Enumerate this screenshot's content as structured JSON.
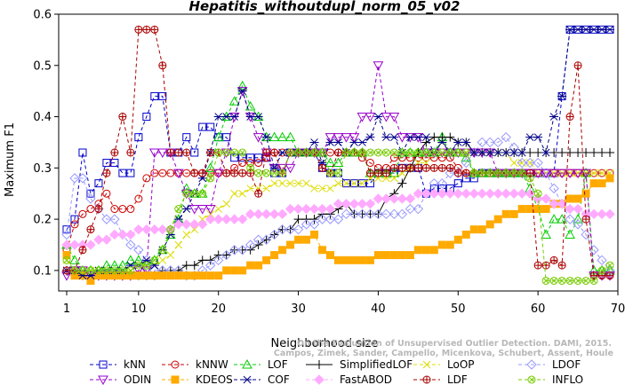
{
  "chart_data": {
    "type": "line",
    "title": "Hepatitis_withoutdupl_norm_05_v02",
    "xlabel": "Neighborhood size",
    "ylabel": "Maximum F1",
    "xlim": [
      0,
      70
    ],
    "ylim": [
      0.06,
      0.6
    ],
    "x_ticks": [
      1,
      10,
      20,
      30,
      40,
      50,
      60,
      70
    ],
    "y_ticks": [
      0.1,
      0.2,
      0.3,
      0.4,
      0.5,
      0.6
    ],
    "grid": false,
    "legend_position": "bottom",
    "watermark": [
      "Campos, Zimek, Sander, Campello, Micenkova, Schubert, Assent, Houle",
      "On the Evaluation of Unsupervised Outlier Detection. DAMI, 2015."
    ],
    "x": [
      1,
      2,
      3,
      4,
      5,
      6,
      7,
      8,
      9,
      10,
      11,
      12,
      13,
      14,
      15,
      16,
      17,
      18,
      19,
      20,
      21,
      22,
      23,
      24,
      25,
      26,
      27,
      28,
      29,
      30,
      31,
      32,
      33,
      34,
      35,
      36,
      37,
      38,
      39,
      40,
      41,
      42,
      43,
      44,
      45,
      46,
      47,
      48,
      49,
      50,
      51,
      52,
      53,
      54,
      55,
      56,
      57,
      58,
      59,
      60,
      61,
      62,
      63,
      64,
      65,
      66,
      67,
      68,
      69
    ],
    "series": [
      {
        "name": "kNN",
        "color": "#0000cc",
        "marker": "square",
        "dash": "4,3",
        "values": [
          0.18,
          0.2,
          0.33,
          0.25,
          0.27,
          0.31,
          0.31,
          0.29,
          0.29,
          0.36,
          0.4,
          0.44,
          0.44,
          0.33,
          0.33,
          0.36,
          0.33,
          0.38,
          0.38,
          0.36,
          0.36,
          0.32,
          0.32,
          0.32,
          0.32,
          0.32,
          0.29,
          0.29,
          0.33,
          0.33,
          0.33,
          0.33,
          0.3,
          0.29,
          0.29,
          0.27,
          0.27,
          0.27,
          0.27,
          0.29,
          0.29,
          0.29,
          0.3,
          0.3,
          0.3,
          0.25,
          0.26,
          0.26,
          0.26,
          0.27,
          0.28,
          0.28,
          0.29,
          0.29,
          0.29,
          0.29,
          0.29,
          0.29,
          0.29,
          0.29,
          0.29,
          0.29,
          0.44,
          0.57,
          0.57,
          0.57,
          0.57,
          0.57,
          0.57
        ]
      },
      {
        "name": "kNNW",
        "color": "#cc0000",
        "marker": "circle",
        "dash": "4,3",
        "values": [
          0.14,
          0.19,
          0.21,
          0.22,
          0.23,
          0.25,
          0.22,
          0.22,
          0.22,
          0.24,
          0.28,
          0.29,
          0.29,
          0.29,
          0.29,
          0.29,
          0.29,
          0.29,
          0.29,
          0.29,
          0.29,
          0.3,
          0.31,
          0.31,
          0.31,
          0.32,
          0.33,
          0.33,
          0.33,
          0.33,
          0.33,
          0.33,
          0.33,
          0.33,
          0.33,
          0.33,
          0.33,
          0.32,
          0.31,
          0.3,
          0.3,
          0.32,
          0.32,
          0.32,
          0.32,
          0.32,
          0.32,
          0.32,
          0.32,
          0.3,
          0.29,
          0.29,
          0.29,
          0.29,
          0.29,
          0.29,
          0.29,
          0.29,
          0.29,
          0.29,
          0.29,
          0.29,
          0.29,
          0.29,
          0.29,
          0.29,
          0.29,
          0.29,
          0.29
        ]
      },
      {
        "name": "LOF",
        "color": "#00cc00",
        "marker": "triangle-up",
        "dash": "4,3",
        "values": [
          0.15,
          0.12,
          0.1,
          0.1,
          0.1,
          0.11,
          0.11,
          0.11,
          0.12,
          0.12,
          0.11,
          0.12,
          0.14,
          0.17,
          0.2,
          0.26,
          0.25,
          0.25,
          0.3,
          0.36,
          0.4,
          0.43,
          0.46,
          0.42,
          0.4,
          0.36,
          0.36,
          0.36,
          0.36,
          0.33,
          0.33,
          0.33,
          0.33,
          0.31,
          0.31,
          0.33,
          0.33,
          0.33,
          0.29,
          0.29,
          0.29,
          0.29,
          0.33,
          0.33,
          0.33,
          0.33,
          0.33,
          0.36,
          0.33,
          0.33,
          0.32,
          0.29,
          0.29,
          0.29,
          0.29,
          0.29,
          0.29,
          0.29,
          0.26,
          0.22,
          0.17,
          0.2,
          0.2,
          0.17,
          0.2,
          0.29,
          0.1,
          0.1,
          0.1
        ]
      },
      {
        "name": "SimplifiedLOF",
        "color": "#000000",
        "marker": "plus",
        "dash": "",
        "values": [
          0.1,
          0.1,
          0.09,
          0.09,
          0.09,
          0.09,
          0.09,
          0.09,
          0.09,
          0.09,
          0.09,
          0.09,
          0.1,
          0.1,
          0.1,
          0.11,
          0.11,
          0.12,
          0.12,
          0.13,
          0.13,
          0.14,
          0.14,
          0.14,
          0.15,
          0.16,
          0.17,
          0.18,
          0.18,
          0.2,
          0.2,
          0.2,
          0.21,
          0.21,
          0.22,
          0.23,
          0.21,
          0.21,
          0.21,
          0.21,
          0.24,
          0.25,
          0.27,
          0.3,
          0.33,
          0.35,
          0.36,
          0.36,
          0.36,
          0.35,
          0.35,
          0.33,
          0.33,
          0.33,
          0.33,
          0.33,
          0.33,
          0.33,
          0.33,
          0.33,
          0.33,
          0.33,
          0.33,
          0.33,
          0.33,
          0.33,
          0.33,
          0.33,
          0.33
        ]
      },
      {
        "name": "LoOP",
        "color": "#dddd00",
        "marker": "x",
        "dash": "4,3",
        "values": [
          0.12,
          0.1,
          0.09,
          0.1,
          0.1,
          0.1,
          0.1,
          0.1,
          0.1,
          0.11,
          0.11,
          0.11,
          0.12,
          0.13,
          0.15,
          0.17,
          0.18,
          0.2,
          0.21,
          0.22,
          0.23,
          0.25,
          0.25,
          0.26,
          0.26,
          0.26,
          0.27,
          0.27,
          0.27,
          0.27,
          0.27,
          0.26,
          0.26,
          0.26,
          0.27,
          0.27,
          0.27,
          0.27,
          0.28,
          0.28,
          0.28,
          0.28,
          0.29,
          0.3,
          0.31,
          0.31,
          0.33,
          0.35,
          0.33,
          0.33,
          0.33,
          0.33,
          0.33,
          0.33,
          0.33,
          0.33,
          0.31,
          0.31,
          0.31,
          0.29,
          0.29,
          0.29,
          0.29,
          0.29,
          0.29,
          0.29,
          0.29,
          0.29,
          0.29
        ]
      },
      {
        "name": "LDOF",
        "color": "#9999ff",
        "marker": "diamond",
        "dash": "4,3",
        "values": [
          0.17,
          0.28,
          0.28,
          0.24,
          0.22,
          0.2,
          0.2,
          0.17,
          0.15,
          0.14,
          0.12,
          0.1,
          0.1,
          0.1,
          0.1,
          0.09,
          0.09,
          0.1,
          0.11,
          0.12,
          0.13,
          0.14,
          0.14,
          0.15,
          0.16,
          0.16,
          0.17,
          0.18,
          0.18,
          0.18,
          0.19,
          0.19,
          0.2,
          0.2,
          0.2,
          0.21,
          0.21,
          0.21,
          0.21,
          0.21,
          0.21,
          0.21,
          0.21,
          0.22,
          0.22,
          0.25,
          0.27,
          0.27,
          0.29,
          0.29,
          0.31,
          0.33,
          0.35,
          0.35,
          0.35,
          0.36,
          0.34,
          0.31,
          0.31,
          0.31,
          0.29,
          0.26,
          0.23,
          0.2,
          0.19,
          0.17,
          0.14,
          0.12,
          0.1
        ]
      },
      {
        "name": "ODIN",
        "color": "#9900cc",
        "marker": "triangle-down",
        "dash": "4,3",
        "values": [
          0.09,
          0.1,
          0.1,
          0.09,
          0.09,
          0.09,
          0.09,
          0.09,
          0.09,
          0.1,
          0.1,
          0.33,
          0.33,
          0.33,
          0.29,
          0.25,
          0.22,
          0.22,
          0.22,
          0.29,
          0.33,
          0.4,
          0.45,
          0.4,
          0.36,
          0.33,
          0.3,
          0.3,
          0.3,
          0.33,
          0.33,
          0.33,
          0.33,
          0.36,
          0.36,
          0.36,
          0.36,
          0.4,
          0.4,
          0.5,
          0.4,
          0.4,
          0.36,
          0.36,
          0.36,
          0.33,
          0.33,
          0.33,
          0.33,
          0.33,
          0.33,
          0.33,
          0.33,
          0.33,
          0.29,
          0.29,
          0.29,
          0.29,
          0.29,
          0.29,
          0.29,
          0.29,
          0.29,
          0.29,
          0.29,
          0.29,
          0.09,
          0.09,
          0.09
        ]
      },
      {
        "name": "KDEOS",
        "color": "#ffaa00",
        "marker": "square-filled",
        "dash": "4,3",
        "values": [
          0.13,
          0.09,
          0.09,
          0.08,
          0.09,
          0.09,
          0.09,
          0.09,
          0.09,
          0.09,
          0.09,
          0.09,
          0.09,
          0.09,
          0.09,
          0.09,
          0.09,
          0.09,
          0.09,
          0.09,
          0.1,
          0.1,
          0.1,
          0.11,
          0.11,
          0.12,
          0.13,
          0.14,
          0.15,
          0.16,
          0.16,
          0.17,
          0.14,
          0.13,
          0.12,
          0.12,
          0.12,
          0.12,
          0.12,
          0.13,
          0.13,
          0.13,
          0.13,
          0.13,
          0.14,
          0.14,
          0.14,
          0.15,
          0.15,
          0.16,
          0.17,
          0.18,
          0.18,
          0.19,
          0.2,
          0.21,
          0.21,
          0.22,
          0.22,
          0.22,
          0.22,
          0.23,
          0.23,
          0.24,
          0.24,
          0.25,
          0.27,
          0.27,
          0.28
        ]
      },
      {
        "name": "COF",
        "color": "#000088",
        "marker": "asterisk",
        "dash": "4,3",
        "values": [
          0.1,
          0.1,
          0.09,
          0.09,
          0.1,
          0.1,
          0.1,
          0.1,
          0.11,
          0.11,
          0.12,
          0.11,
          0.14,
          0.17,
          0.2,
          0.22,
          0.25,
          0.28,
          0.33,
          0.4,
          0.4,
          0.4,
          0.45,
          0.4,
          0.4,
          0.36,
          0.3,
          0.33,
          0.33,
          0.33,
          0.33,
          0.35,
          0.31,
          0.35,
          0.35,
          0.33,
          0.35,
          0.35,
          0.36,
          0.4,
          0.36,
          0.36,
          0.33,
          0.36,
          0.36,
          0.36,
          0.33,
          0.35,
          0.33,
          0.35,
          0.35,
          0.33,
          0.33,
          0.33,
          0.33,
          0.33,
          0.33,
          0.33,
          0.36,
          0.36,
          0.33,
          0.4,
          0.44,
          0.57,
          0.57,
          0.57,
          0.57,
          0.57,
          0.57
        ]
      },
      {
        "name": "FastABOD",
        "color": "#ffaaff",
        "marker": "diamond-filled",
        "dash": "4,3",
        "values": [
          0.15,
          0.15,
          0.15,
          0.15,
          0.16,
          0.16,
          0.17,
          0.17,
          0.17,
          0.18,
          0.18,
          0.18,
          0.18,
          0.18,
          0.19,
          0.19,
          0.19,
          0.19,
          0.2,
          0.2,
          0.2,
          0.2,
          0.2,
          0.21,
          0.21,
          0.21,
          0.21,
          0.21,
          0.22,
          0.22,
          0.22,
          0.22,
          0.22,
          0.22,
          0.23,
          0.23,
          0.23,
          0.23,
          0.23,
          0.24,
          0.24,
          0.24,
          0.24,
          0.24,
          0.25,
          0.25,
          0.25,
          0.25,
          0.25,
          0.25,
          0.25,
          0.25,
          0.25,
          0.25,
          0.25,
          0.25,
          0.25,
          0.25,
          0.25,
          0.24,
          0.24,
          0.23,
          0.23,
          0.22,
          0.22,
          0.21,
          0.21,
          0.21,
          0.21
        ]
      },
      {
        "name": "LDF",
        "color": "#aa0000",
        "marker": "circle-plus",
        "dash": "4,3",
        "values": [
          0.1,
          0.1,
          0.14,
          0.18,
          0.22,
          0.29,
          0.33,
          0.4,
          0.33,
          0.57,
          0.57,
          0.57,
          0.5,
          0.33,
          0.33,
          0.33,
          0.29,
          0.29,
          0.33,
          0.33,
          0.29,
          0.29,
          0.29,
          0.29,
          0.25,
          0.33,
          0.33,
          0.29,
          0.33,
          0.33,
          0.33,
          0.33,
          0.3,
          0.29,
          0.33,
          0.33,
          0.33,
          0.33,
          0.29,
          0.29,
          0.29,
          0.3,
          0.3,
          0.3,
          0.3,
          0.3,
          0.3,
          0.3,
          0.3,
          0.29,
          0.29,
          0.29,
          0.29,
          0.29,
          0.29,
          0.29,
          0.29,
          0.29,
          0.29,
          0.11,
          0.11,
          0.12,
          0.11,
          0.4,
          0.5,
          0.2,
          0.09,
          0.09,
          0.09
        ]
      },
      {
        "name": "INFLO",
        "color": "#77cc00",
        "marker": "circle-x",
        "dash": "4,3",
        "values": [
          0.12,
          0.1,
          0.1,
          0.1,
          0.1,
          0.1,
          0.1,
          0.1,
          0.1,
          0.11,
          0.11,
          0.12,
          0.14,
          0.18,
          0.22,
          0.25,
          0.25,
          0.25,
          0.28,
          0.33,
          0.33,
          0.33,
          0.33,
          0.3,
          0.29,
          0.29,
          0.29,
          0.29,
          0.33,
          0.33,
          0.33,
          0.33,
          0.33,
          0.29,
          0.29,
          0.33,
          0.33,
          0.33,
          0.33,
          0.33,
          0.33,
          0.33,
          0.33,
          0.33,
          0.33,
          0.33,
          0.33,
          0.33,
          0.33,
          0.33,
          0.33,
          0.29,
          0.29,
          0.29,
          0.29,
          0.29,
          0.29,
          0.29,
          0.28,
          0.25,
          0.08,
          0.08,
          0.08,
          0.08,
          0.08,
          0.08,
          0.08,
          0.1,
          0.11
        ]
      }
    ]
  }
}
